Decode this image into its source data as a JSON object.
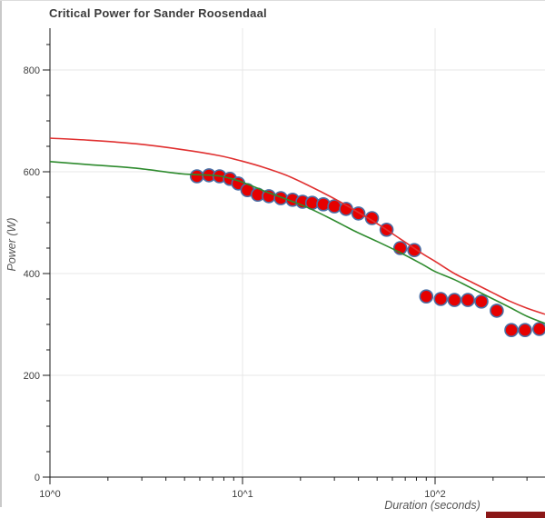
{
  "chart_data": {
    "type": "scatter",
    "title": "Critical Power for Sander Roosendaal",
    "xlabel": "Duration (seconds)",
    "ylabel": "Power (W)",
    "x_scale": "log10",
    "xlim": [
      1,
      373
    ],
    "ylim": [
      0,
      880
    ],
    "grid": {
      "h_lines": [
        200,
        400,
        600,
        800
      ],
      "v_lines": [
        10,
        100
      ]
    },
    "x_major_ticks": [
      {
        "value": 1,
        "label": "10^0"
      },
      {
        "value": 10,
        "label": "10^1"
      },
      {
        "value": 100,
        "label": "10^2"
      }
    ],
    "y_major_ticks": [
      0,
      200,
      400,
      600,
      800
    ],
    "y_minor_step": 50,
    "colors": {
      "grid": "#e7e7e7",
      "axis": "#1a1a1a",
      "tick_label": "#3f3f3f",
      "title": "#3a3a3a",
      "axis_label": "#555555"
    },
    "points": {
      "name": "measured power-duration points",
      "fill": "#e60000",
      "stroke": "#4a6fa5",
      "radius": 7,
      "data": [
        [
          5.8,
          591
        ],
        [
          6.7,
          593
        ],
        [
          7.6,
          591
        ],
        [
          8.6,
          586
        ],
        [
          9.5,
          577
        ],
        [
          10.6,
          564
        ],
        [
          12,
          555
        ],
        [
          13.7,
          552
        ],
        [
          15.8,
          548
        ],
        [
          18.2,
          545
        ],
        [
          20.5,
          541
        ],
        [
          23,
          539
        ],
        [
          26.3,
          536
        ],
        [
          30,
          532
        ],
        [
          34.5,
          527
        ],
        [
          40,
          518
        ],
        [
          47,
          509
        ],
        [
          56,
          486
        ],
        [
          66,
          450
        ],
        [
          78,
          446
        ],
        [
          90,
          355
        ],
        [
          107,
          350
        ],
        [
          126,
          348
        ],
        [
          148,
          348
        ],
        [
          174,
          345
        ],
        [
          209,
          327
        ],
        [
          249,
          289
        ],
        [
          293,
          289
        ],
        [
          348,
          291
        ]
      ]
    },
    "series": [
      {
        "name": "red model curve",
        "color": "#e03030",
        "data": [
          [
            1,
            666
          ],
          [
            1.6,
            662
          ],
          [
            2.8,
            655
          ],
          [
            4.8,
            644
          ],
          [
            7.5,
            632
          ],
          [
            9.9,
            621
          ],
          [
            12.8,
            609
          ],
          [
            16.9,
            593
          ],
          [
            22,
            573
          ],
          [
            29,
            550
          ],
          [
            38,
            525
          ],
          [
            50,
            498
          ],
          [
            66,
            468
          ],
          [
            86,
            439
          ],
          [
            100,
            424
          ],
          [
            126,
            400
          ],
          [
            157,
            382
          ],
          [
            195,
            364
          ],
          [
            243,
            346
          ],
          [
            300,
            332
          ],
          [
            372,
            320
          ]
        ]
      },
      {
        "name": "green model curve",
        "color": "#2e8b2e",
        "data": [
          [
            1,
            620
          ],
          [
            1.6,
            614
          ],
          [
            2.8,
            607
          ],
          [
            4.8,
            596
          ],
          [
            7.5,
            592
          ],
          [
            9.9,
            580
          ],
          [
            12.8,
            563
          ],
          [
            16.9,
            546
          ],
          [
            22,
            529
          ],
          [
            29,
            507
          ],
          [
            38,
            484
          ],
          [
            50,
            463
          ],
          [
            66,
            441
          ],
          [
            86,
            418
          ],
          [
            100,
            404
          ],
          [
            126,
            388
          ],
          [
            157,
            370
          ],
          [
            195,
            352
          ],
          [
            243,
            334
          ],
          [
            300,
            316
          ],
          [
            372,
            302
          ]
        ]
      }
    ]
  },
  "page": {
    "left_border_color": "#c9c9c9",
    "top_border_color": "#dcdcdc",
    "bottom_right_bar_color": "#8b1717"
  }
}
